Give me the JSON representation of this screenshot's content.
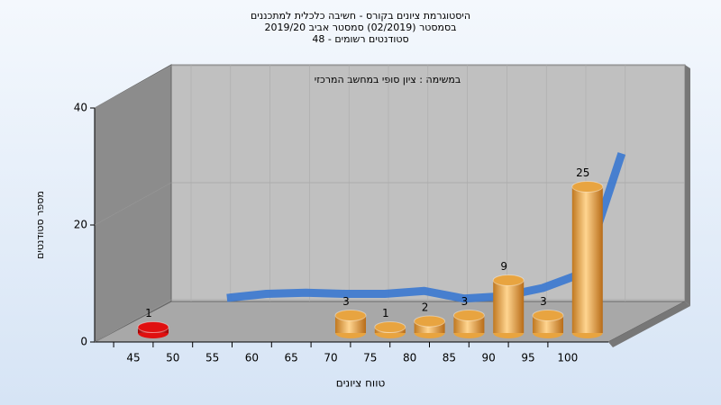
{
  "chart_data": {
    "type": "bar",
    "title": [
      "היסטוגרמת ציונים בקורס - חשיבה כלכלית למתכננים",
      "בסמסטר  (02/2019)  סמסטר אביב 2019/20",
      "סטודנטים רשומים - 48"
    ],
    "subtitle": "במשימה : ציון סופי במחשב המרכזי",
    "x_label": "טווח ציונים",
    "y_label": "מספר סטודנטים",
    "categories": [
      "45",
      "50",
      "55",
      "60",
      "65",
      "70",
      "75",
      "80",
      "85",
      "90",
      "95",
      "100"
    ],
    "values": [
      1,
      null,
      null,
      null,
      null,
      3,
      1,
      2,
      3,
      9,
      3,
      25
    ],
    "bar_colors": [
      "#e01010",
      null,
      null,
      null,
      null,
      "#e8a440",
      "#e8a440",
      "#e8a440",
      "#e8a440",
      "#e8a440",
      "#e8a440",
      "#e8a440"
    ],
    "curve": {
      "color": "#3a78d0",
      "values": [
        null,
        0.3,
        1,
        1.2,
        1,
        1,
        1.5,
        0.2,
        0.6,
        2,
        4.5,
        25
      ]
    },
    "ylim": [
      0,
      40
    ],
    "yticks": [
      0,
      20,
      40
    ]
  }
}
